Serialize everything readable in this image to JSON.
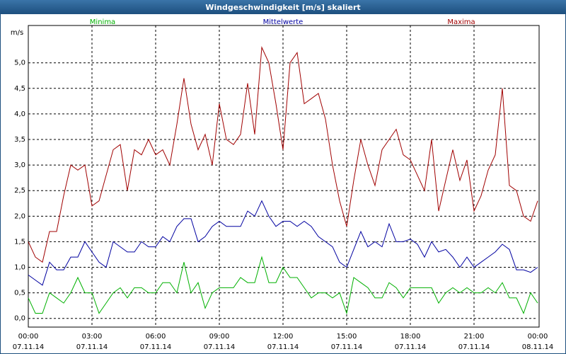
{
  "chart_data": {
    "type": "line",
    "title": "Windgeschwindigkeit [m/s] skaliert",
    "y_unit": "m/s",
    "x": [
      0,
      20,
      40,
      60,
      80,
      100,
      120,
      140,
      160,
      180,
      200,
      220,
      240,
      260,
      280,
      300,
      320,
      340,
      360,
      380,
      400,
      420,
      440,
      460,
      480,
      500,
      520,
      540,
      560,
      580,
      600,
      620,
      640,
      660,
      680,
      700,
      720,
      740,
      760,
      780,
      800,
      820,
      840,
      860,
      880,
      900,
      920,
      940,
      960,
      980,
      1000,
      1020,
      1040,
      1060,
      1080,
      1100,
      1120,
      1140,
      1160,
      1180,
      1200,
      1220,
      1240,
      1260,
      1280,
      1300,
      1320,
      1340,
      1360,
      1380,
      1400,
      1420,
      1440
    ],
    "series": [
      {
        "name": "Minima",
        "color": "#00b000",
        "values": [
          0.4,
          0.1,
          0.1,
          0.5,
          0.4,
          0.3,
          0.5,
          0.8,
          0.5,
          0.5,
          0.1,
          0.3,
          0.5,
          0.6,
          0.4,
          0.6,
          0.6,
          0.5,
          0.5,
          0.7,
          0.7,
          0.5,
          1.1,
          0.5,
          0.7,
          0.2,
          0.5,
          0.6,
          0.6,
          0.6,
          0.8,
          0.7,
          0.7,
          1.2,
          0.7,
          0.7,
          1.0,
          0.8,
          0.8,
          0.6,
          0.4,
          0.5,
          0.5,
          0.4,
          0.5,
          0.1,
          0.8,
          0.7,
          0.6,
          0.4,
          0.4,
          0.7,
          0.6,
          0.4,
          0.6,
          0.6,
          0.6,
          0.6,
          0.3,
          0.5,
          0.6,
          0.5,
          0.6,
          0.5,
          0.5,
          0.6,
          0.5,
          0.7,
          0.4,
          0.4,
          0.1,
          0.5,
          0.3
        ]
      },
      {
        "name": "Mittelwerte",
        "color": "#0000a0",
        "values": [
          0.85,
          0.75,
          0.65,
          1.1,
          0.95,
          0.95,
          1.2,
          1.2,
          1.5,
          1.3,
          1.1,
          1.0,
          1.5,
          1.4,
          1.3,
          1.3,
          1.5,
          1.4,
          1.4,
          1.6,
          1.5,
          1.8,
          1.95,
          1.95,
          1.5,
          1.6,
          1.8,
          1.9,
          1.8,
          1.8,
          1.8,
          2.1,
          2.0,
          2.3,
          2.0,
          1.8,
          1.9,
          1.9,
          1.8,
          1.9,
          1.8,
          1.6,
          1.5,
          1.4,
          1.1,
          1.0,
          1.35,
          1.7,
          1.4,
          1.5,
          1.4,
          1.85,
          1.5,
          1.5,
          1.55,
          1.45,
          1.2,
          1.5,
          1.3,
          1.35,
          1.2,
          1.0,
          1.2,
          1.0,
          1.1,
          1.2,
          1.3,
          1.45,
          1.35,
          0.95,
          0.95,
          0.9,
          1.0
        ]
      },
      {
        "name": "Maxima",
        "color": "#a00000",
        "values": [
          1.5,
          1.2,
          1.1,
          1.7,
          1.7,
          2.4,
          3.0,
          2.9,
          3.0,
          2.2,
          2.3,
          2.8,
          3.3,
          3.4,
          2.5,
          3.3,
          3.2,
          3.5,
          3.2,
          3.3,
          3.0,
          3.8,
          4.7,
          3.8,
          3.3,
          3.6,
          3.0,
          4.2,
          3.5,
          3.4,
          3.6,
          4.6,
          3.6,
          5.3,
          5.0,
          4.2,
          3.3,
          5.0,
          5.2,
          4.2,
          4.3,
          4.4,
          3.9,
          3.0,
          2.3,
          1.8,
          2.7,
          3.5,
          3.0,
          2.6,
          3.3,
          3.5,
          3.7,
          3.2,
          3.1,
          2.8,
          2.5,
          3.5,
          2.1,
          2.7,
          3.3,
          2.7,
          3.1,
          2.1,
          2.4,
          2.9,
          3.2,
          4.5,
          2.6,
          2.5,
          2.0,
          1.9,
          2.3
        ]
      }
    ],
    "xlim": [
      0,
      1440
    ],
    "xticks": [
      {
        "value": 0,
        "label": "00:00"
      },
      {
        "value": 180,
        "label": "03:00"
      },
      {
        "value": 360,
        "label": "06:00"
      },
      {
        "value": 540,
        "label": "09:00"
      },
      {
        "value": 720,
        "label": "12:00"
      },
      {
        "value": 900,
        "label": "15:00"
      },
      {
        "value": 1080,
        "label": "18:00"
      },
      {
        "value": 1260,
        "label": "21:00"
      },
      {
        "value": 1440,
        "label": "00:00"
      }
    ],
    "xtick_dates": [
      "07.11.14",
      "07.11.14",
      "07.11.14",
      "07.11.14",
      "07.11.14",
      "07.11.14",
      "07.11.14",
      "07.11.14",
      "08.11.14"
    ],
    "ylim": [
      -0.17,
      5.73
    ],
    "yticks": [
      {
        "value": 0,
        "label": "0,0"
      },
      {
        "value": 0.5,
        "label": "0,5"
      },
      {
        "value": 1,
        "label": "1,0"
      },
      {
        "value": 1.5,
        "label": "1,5"
      },
      {
        "value": 2,
        "label": "2,0"
      },
      {
        "value": 2.5,
        "label": "2,5"
      },
      {
        "value": 3,
        "label": "3,0"
      },
      {
        "value": 3.5,
        "label": "3,5"
      },
      {
        "value": 4,
        "label": "4,0"
      },
      {
        "value": 4.5,
        "label": "4,5"
      },
      {
        "value": 5,
        "label": "5,0"
      }
    ],
    "grid": true
  }
}
